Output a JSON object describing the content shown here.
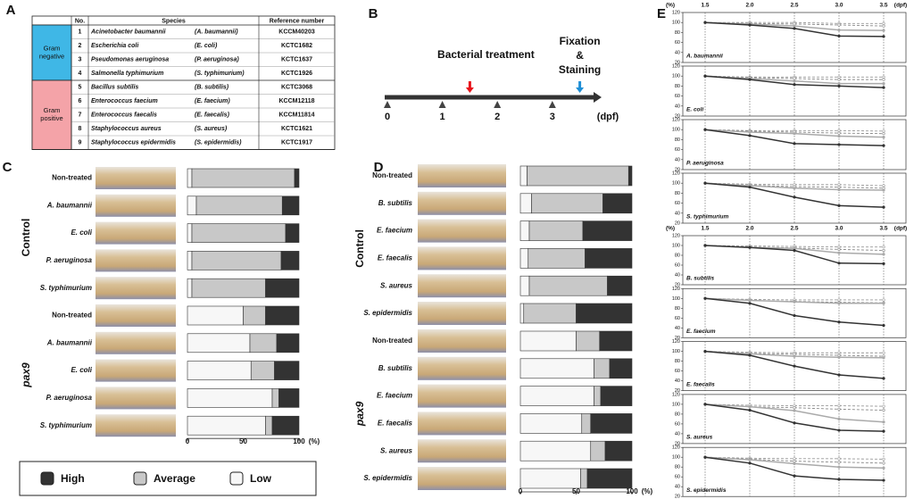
{
  "panel_labels": [
    "A",
    "B",
    "C",
    "D",
    "E"
  ],
  "table": {
    "headers": [
      "No.",
      "Species",
      "Reference number"
    ],
    "groups": [
      {
        "label_lines": [
          "Gram",
          "negative"
        ],
        "color": "#3fb7e6",
        "rows": [
          {
            "no": 1,
            "species": "Acinetobacter baumannii",
            "abbr": "(A. baumannii)",
            "ref": "KCCM40203"
          },
          {
            "no": 2,
            "species": "Escherichia coli",
            "abbr": "(E. coli)",
            "ref": "KCTC1682"
          },
          {
            "no": 3,
            "species": "Pseudomonas aeruginosa",
            "abbr": "(P. aeruginosa)",
            "ref": "KCTC1637"
          },
          {
            "no": 4,
            "species": "Salmonella typhimurium",
            "abbr": "(S. typhimurium)",
            "ref": "KCTC1926"
          }
        ]
      },
      {
        "label_lines": [
          "Gram",
          "positive"
        ],
        "color": "#f4a3a8",
        "rows": [
          {
            "no": 5,
            "species": "Bacillus subtilis",
            "abbr": "(B. subtilis)",
            "ref": "KCTC3068"
          },
          {
            "no": 6,
            "species": "Enterococcus faecium",
            "abbr": "(E. faecium)",
            "ref": "KCCM12118"
          },
          {
            "no": 7,
            "species": "Enterococcus faecalis",
            "abbr": "(E. faecalis)",
            "ref": "KCCM11814"
          },
          {
            "no": 8,
            "species": "Staphylococcus aureus",
            "abbr": "(S. aureus)",
            "ref": "KCTC1621"
          },
          {
            "no": 9,
            "species": "Staphylococcus epidermidis",
            "abbr": "(S. epidermidis)",
            "ref": "KCTC1917"
          }
        ]
      }
    ]
  },
  "timeline": {
    "xlim": [
      0,
      3.75
    ],
    "ticks": [
      0,
      1,
      2,
      3
    ],
    "unit": "(dpf)",
    "events": [
      {
        "label_lines": [
          "Bacterial treatment"
        ],
        "x": 1.5,
        "color": "#e8141b"
      },
      {
        "label_lines": [
          "Fixation",
          "&",
          "Staining"
        ],
        "x": 3.5,
        "color": "#1f8fd6"
      }
    ]
  },
  "chart_data": [
    {
      "type": "hbar_stacked",
      "groups": [
        {
          "label": "Control",
          "categories": [
            "Non-treated",
            "A. baumannii",
            "E. coli",
            "P. aeruginosa",
            "S. typhimurium"
          ]
        },
        {
          "label": "pax9",
          "categories": [
            "Non-treated",
            "A. baumannii",
            "E. coli",
            "P. aeruginosa",
            "S. typhimurium"
          ]
        }
      ],
      "series": [
        {
          "name": "High",
          "color": "#333333",
          "values": [
            4,
            15,
            12,
            16,
            30,
            30,
            20,
            22,
            18,
            24
          ]
        },
        {
          "name": "Average",
          "color": "#c8c8c8",
          "values": [
            92,
            77,
            84,
            80,
            66,
            20,
            24,
            21,
            6,
            6
          ]
        },
        {
          "name": "Low",
          "color": "#f7f7f7",
          "values": [
            4,
            8,
            4,
            4,
            4,
            50,
            56,
            57,
            76,
            70
          ]
        }
      ],
      "xlim": [
        0,
        100
      ],
      "xticks": [
        0,
        50,
        100
      ],
      "xlabel": "(%)"
    },
    {
      "type": "hbar_stacked",
      "groups": [
        {
          "label": "Control",
          "categories": [
            "Non-treated",
            "B. subtilis",
            "E. faecium",
            "E. faecalis",
            "S. aureus",
            "S. epidermidis"
          ]
        },
        {
          "label": "pax9",
          "categories": [
            "Non-treated",
            "B. subtilis",
            "E. faecium",
            "E. faecalis",
            "S. aureus",
            "S. epidermidis"
          ]
        }
      ],
      "series": [
        {
          "color": "#333333",
          "values": [
            3,
            26,
            44,
            42,
            22,
            50,
            29,
            20,
            28,
            37,
            24,
            40
          ]
        },
        {
          "color": "#c8c8c8",
          "values": [
            91,
            64,
            48,
            51,
            70,
            47,
            21,
            14,
            6,
            8,
            13,
            6
          ]
        },
        {
          "color": "#f7f7f7",
          "values": [
            6,
            10,
            8,
            7,
            8,
            3,
            50,
            66,
            66,
            55,
            63,
            54
          ]
        }
      ],
      "xlim": [
        0,
        100
      ],
      "xticks": [
        0,
        50,
        100
      ],
      "xlabel": "(%)"
    },
    {
      "type": "line",
      "title": "A. baumannii",
      "x": [
        1.5,
        2,
        2.5,
        3,
        3.5
      ],
      "xlim": [
        1.25,
        3.75
      ],
      "xticks": [
        1.5,
        {
          "value": 2,
          "label": "2.0"
        },
        2.5,
        {
          "value": 3,
          "label": "3.0"
        },
        3.5
      ],
      "xlabel": "(dpf)",
      "ylabel": "(%)",
      "ylim": [
        20,
        120
      ],
      "yticks": [
        20,
        40,
        60,
        80,
        100,
        120
      ],
      "series": [
        {
          "color": "#999999",
          "dashed": true,
          "values": [
            100,
            100,
            100,
            98,
            98
          ]
        },
        {
          "color": "#888888",
          "dashed": true,
          "values": [
            100,
            98,
            97,
            95,
            93
          ]
        },
        {
          "color": "#aaaaaa",
          "dashed": false,
          "values": [
            100,
            97,
            93,
            85,
            84
          ]
        },
        {
          "color": "#333333",
          "dashed": false,
          "values": [
            100,
            95,
            88,
            73,
            72
          ]
        }
      ]
    },
    {
      "type": "line",
      "title": "E. coli",
      "x": [
        1.5,
        2,
        2.5,
        3,
        3.5
      ],
      "xlim": [
        1.25,
        3.75
      ],
      "ylim": [
        20,
        120
      ],
      "yticks": [
        20,
        40,
        60,
        80,
        100,
        120
      ],
      "series": [
        {
          "color": "#999999",
          "dashed": true,
          "values": [
            100,
            98,
            98,
            98,
            98
          ]
        },
        {
          "color": "#888888",
          "dashed": true,
          "values": [
            100,
            97,
            95,
            93,
            93
          ]
        },
        {
          "color": "#aaaaaa",
          "dashed": false,
          "values": [
            100,
            95,
            90,
            85,
            85
          ]
        },
        {
          "color": "#333333",
          "dashed": false,
          "values": [
            100,
            93,
            83,
            80,
            77
          ]
        }
      ]
    },
    {
      "type": "line",
      "title": "P. aeruginosa",
      "x": [
        1.5,
        2,
        2.5,
        3,
        3.5
      ],
      "xlim": [
        1.25,
        3.75
      ],
      "ylim": [
        20,
        120
      ],
      "yticks": [
        20,
        40,
        60,
        80,
        100,
        120
      ],
      "series": [
        {
          "color": "#999999",
          "dashed": true,
          "values": [
            100,
            98,
            98,
            98,
            97
          ]
        },
        {
          "color": "#888888",
          "dashed": true,
          "values": [
            100,
            97,
            95,
            93,
            92
          ]
        },
        {
          "color": "#aaaaaa",
          "dashed": false,
          "values": [
            100,
            95,
            92,
            87,
            85
          ]
        },
        {
          "color": "#333333",
          "dashed": false,
          "values": [
            100,
            88,
            72,
            70,
            68
          ]
        }
      ]
    },
    {
      "type": "line",
      "title": "S. typhimurium",
      "x": [
        1.5,
        2,
        2.5,
        3,
        3.5
      ],
      "xlim": [
        1.25,
        3.75
      ],
      "ylim": [
        20,
        120
      ],
      "yticks": [
        20,
        40,
        60,
        80,
        100,
        120
      ],
      "series": [
        {
          "color": "#999999",
          "dashed": true,
          "values": [
            100,
            98,
            97,
            97,
            95
          ]
        },
        {
          "color": "#888888",
          "dashed": true,
          "values": [
            100,
            96,
            93,
            92,
            90
          ]
        },
        {
          "color": "#aaaaaa",
          "dashed": false,
          "values": [
            100,
            95,
            90,
            87,
            86
          ]
        },
        {
          "color": "#333333",
          "dashed": false,
          "values": [
            100,
            92,
            72,
            55,
            52
          ]
        }
      ]
    },
    {
      "type": "line",
      "title": "B. subtilis",
      "x": [
        1.5,
        2,
        2.5,
        3,
        3.5
      ],
      "xlim": [
        1.25,
        3.75
      ],
      "xticks": [
        1.5,
        {
          "value": 2,
          "label": "2.0"
        },
        2.5,
        {
          "value": 3,
          "label": "3.0"
        },
        3.5
      ],
      "xlabel": "(dpf)",
      "ylabel": "(%)",
      "ylim": [
        20,
        120
      ],
      "yticks": [
        20,
        40,
        60,
        80,
        100,
        120
      ],
      "series": [
        {
          "color": "#999999",
          "dashed": true,
          "values": [
            100,
            99,
            98,
            97,
            97
          ]
        },
        {
          "color": "#888888",
          "dashed": true,
          "values": [
            100,
            97,
            95,
            92,
            90
          ]
        },
        {
          "color": "#aaaaaa",
          "dashed": false,
          "values": [
            100,
            96,
            94,
            85,
            82
          ]
        },
        {
          "color": "#333333",
          "dashed": false,
          "values": [
            100,
            96,
            90,
            64,
            63
          ]
        }
      ]
    },
    {
      "type": "line",
      "title": "E. faecium",
      "x": [
        1.5,
        2,
        2.5,
        3,
        3.5
      ],
      "xlim": [
        1.25,
        3.75
      ],
      "ylim": [
        20,
        120
      ],
      "yticks": [
        20,
        40,
        60,
        80,
        100,
        120
      ],
      "series": [
        {
          "color": "#999999",
          "dashed": true,
          "values": [
            100,
            98,
            97,
            97,
            97
          ]
        },
        {
          "color": "#888888",
          "dashed": true,
          "values": [
            100,
            96,
            94,
            92,
            91
          ]
        },
        {
          "color": "#aaaaaa",
          "dashed": false,
          "values": [
            100,
            96,
            93,
            90,
            90
          ]
        },
        {
          "color": "#333333",
          "dashed": false,
          "values": [
            100,
            90,
            65,
            52,
            45
          ]
        }
      ]
    },
    {
      "type": "line",
      "title": "E. faecalis",
      "x": [
        1.5,
        2,
        2.5,
        3,
        3.5
      ],
      "xlim": [
        1.25,
        3.75
      ],
      "ylim": [
        20,
        120
      ],
      "yticks": [
        20,
        40,
        60,
        80,
        100,
        120
      ],
      "series": [
        {
          "color": "#999999",
          "dashed": true,
          "values": [
            100,
            98,
            97,
            97,
            97
          ]
        },
        {
          "color": "#888888",
          "dashed": true,
          "values": [
            100,
            96,
            94,
            92,
            90
          ]
        },
        {
          "color": "#aaaaaa",
          "dashed": false,
          "values": [
            100,
            95,
            90,
            88,
            87
          ]
        },
        {
          "color": "#333333",
          "dashed": false,
          "values": [
            100,
            92,
            70,
            52,
            45
          ]
        }
      ]
    },
    {
      "type": "line",
      "title": "S. aureus",
      "x": [
        1.5,
        2,
        2.5,
        3,
        3.5
      ],
      "xlim": [
        1.25,
        3.75
      ],
      "ylim": [
        20,
        120
      ],
      "yticks": [
        20,
        40,
        60,
        80,
        100,
        120
      ],
      "series": [
        {
          "color": "#999999",
          "dashed": true,
          "values": [
            100,
            98,
            97,
            97,
            96
          ]
        },
        {
          "color": "#888888",
          "dashed": true,
          "values": [
            100,
            95,
            93,
            90,
            88
          ]
        },
        {
          "color": "#aaaaaa",
          "dashed": false,
          "values": [
            100,
            95,
            87,
            70,
            64
          ]
        },
        {
          "color": "#333333",
          "dashed": false,
          "values": [
            100,
            88,
            62,
            47,
            45
          ]
        }
      ]
    },
    {
      "type": "line",
      "title": "S. epidermidis",
      "x": [
        1.5,
        2,
        2.5,
        3,
        3.5
      ],
      "xlim": [
        1.25,
        3.75
      ],
      "ylim": [
        20,
        120
      ],
      "yticks": [
        20,
        40,
        60,
        80,
        100,
        120
      ],
      "series": [
        {
          "color": "#999999",
          "dashed": true,
          "values": [
            100,
            98,
            97,
            97,
            96
          ]
        },
        {
          "color": "#888888",
          "dashed": true,
          "values": [
            100,
            96,
            92,
            90,
            88
          ]
        },
        {
          "color": "#aaaaaa",
          "dashed": false,
          "values": [
            100,
            95,
            87,
            80,
            78
          ]
        },
        {
          "color": "#333333",
          "dashed": false,
          "values": [
            100,
            88,
            62,
            55,
            53
          ]
        }
      ]
    }
  ]
}
